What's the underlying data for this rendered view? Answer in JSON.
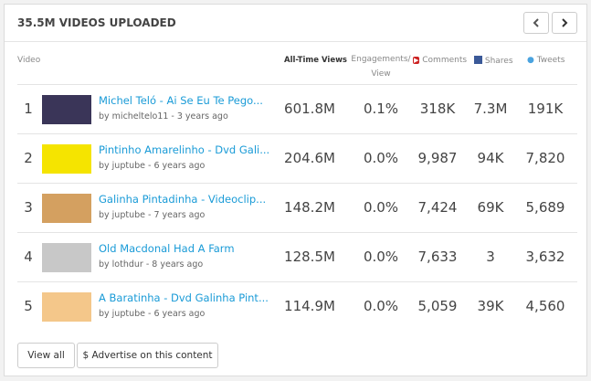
{
  "header": {
    "title": "35.5M VIDEOS UPLOADED"
  },
  "table": {
    "headers": [
      "Video",
      "All-Time Views",
      "Engagements/ View",
      "Comments",
      "Shares",
      "Tweets"
    ],
    "rows": [
      {
        "rank": "1",
        "title": "Michel Teló - Ai Se Eu Te Pego...",
        "meta": "by micheltelo11 - 3 years ago",
        "views": "601.8M",
        "engagement": "0.1%",
        "comments": "318K",
        "shares": "7.3M",
        "tweets": "191K"
      },
      {
        "rank": "2",
        "title": "Pintinho Amarelinho - Dvd Gali...",
        "meta": "by juptube - 6 years ago",
        "views": "204.6M",
        "engagement": "0.0%",
        "comments": "9,987",
        "shares": "94K",
        "tweets": "7,820"
      },
      {
        "rank": "3",
        "title": "Galinha Pintadinha - Videoclip...",
        "meta": "by juptube - 7 years ago",
        "views": "148.2M",
        "engagement": "0.0%",
        "comments": "7,424",
        "shares": "69K",
        "tweets": "5,689"
      },
      {
        "rank": "4",
        "title": "Old Macdonal Had A Farm",
        "meta": "by lothdur - 8 years ago",
        "views": "128.5M",
        "engagement": "0.0%",
        "comments": "7,633",
        "shares": "3",
        "tweets": "3,632"
      },
      {
        "rank": "5",
        "title": "A Baratinha - Dvd Galinha Pint...",
        "meta": "by juptube - 6 years ago",
        "views": "114.9M",
        "engagement": "0.0%",
        "comments": "5,059",
        "shares": "39K",
        "tweets": "4,560"
      }
    ]
  },
  "footer": {
    "buttons": [
      "View all",
      "$ Advertise on this content"
    ]
  }
}
